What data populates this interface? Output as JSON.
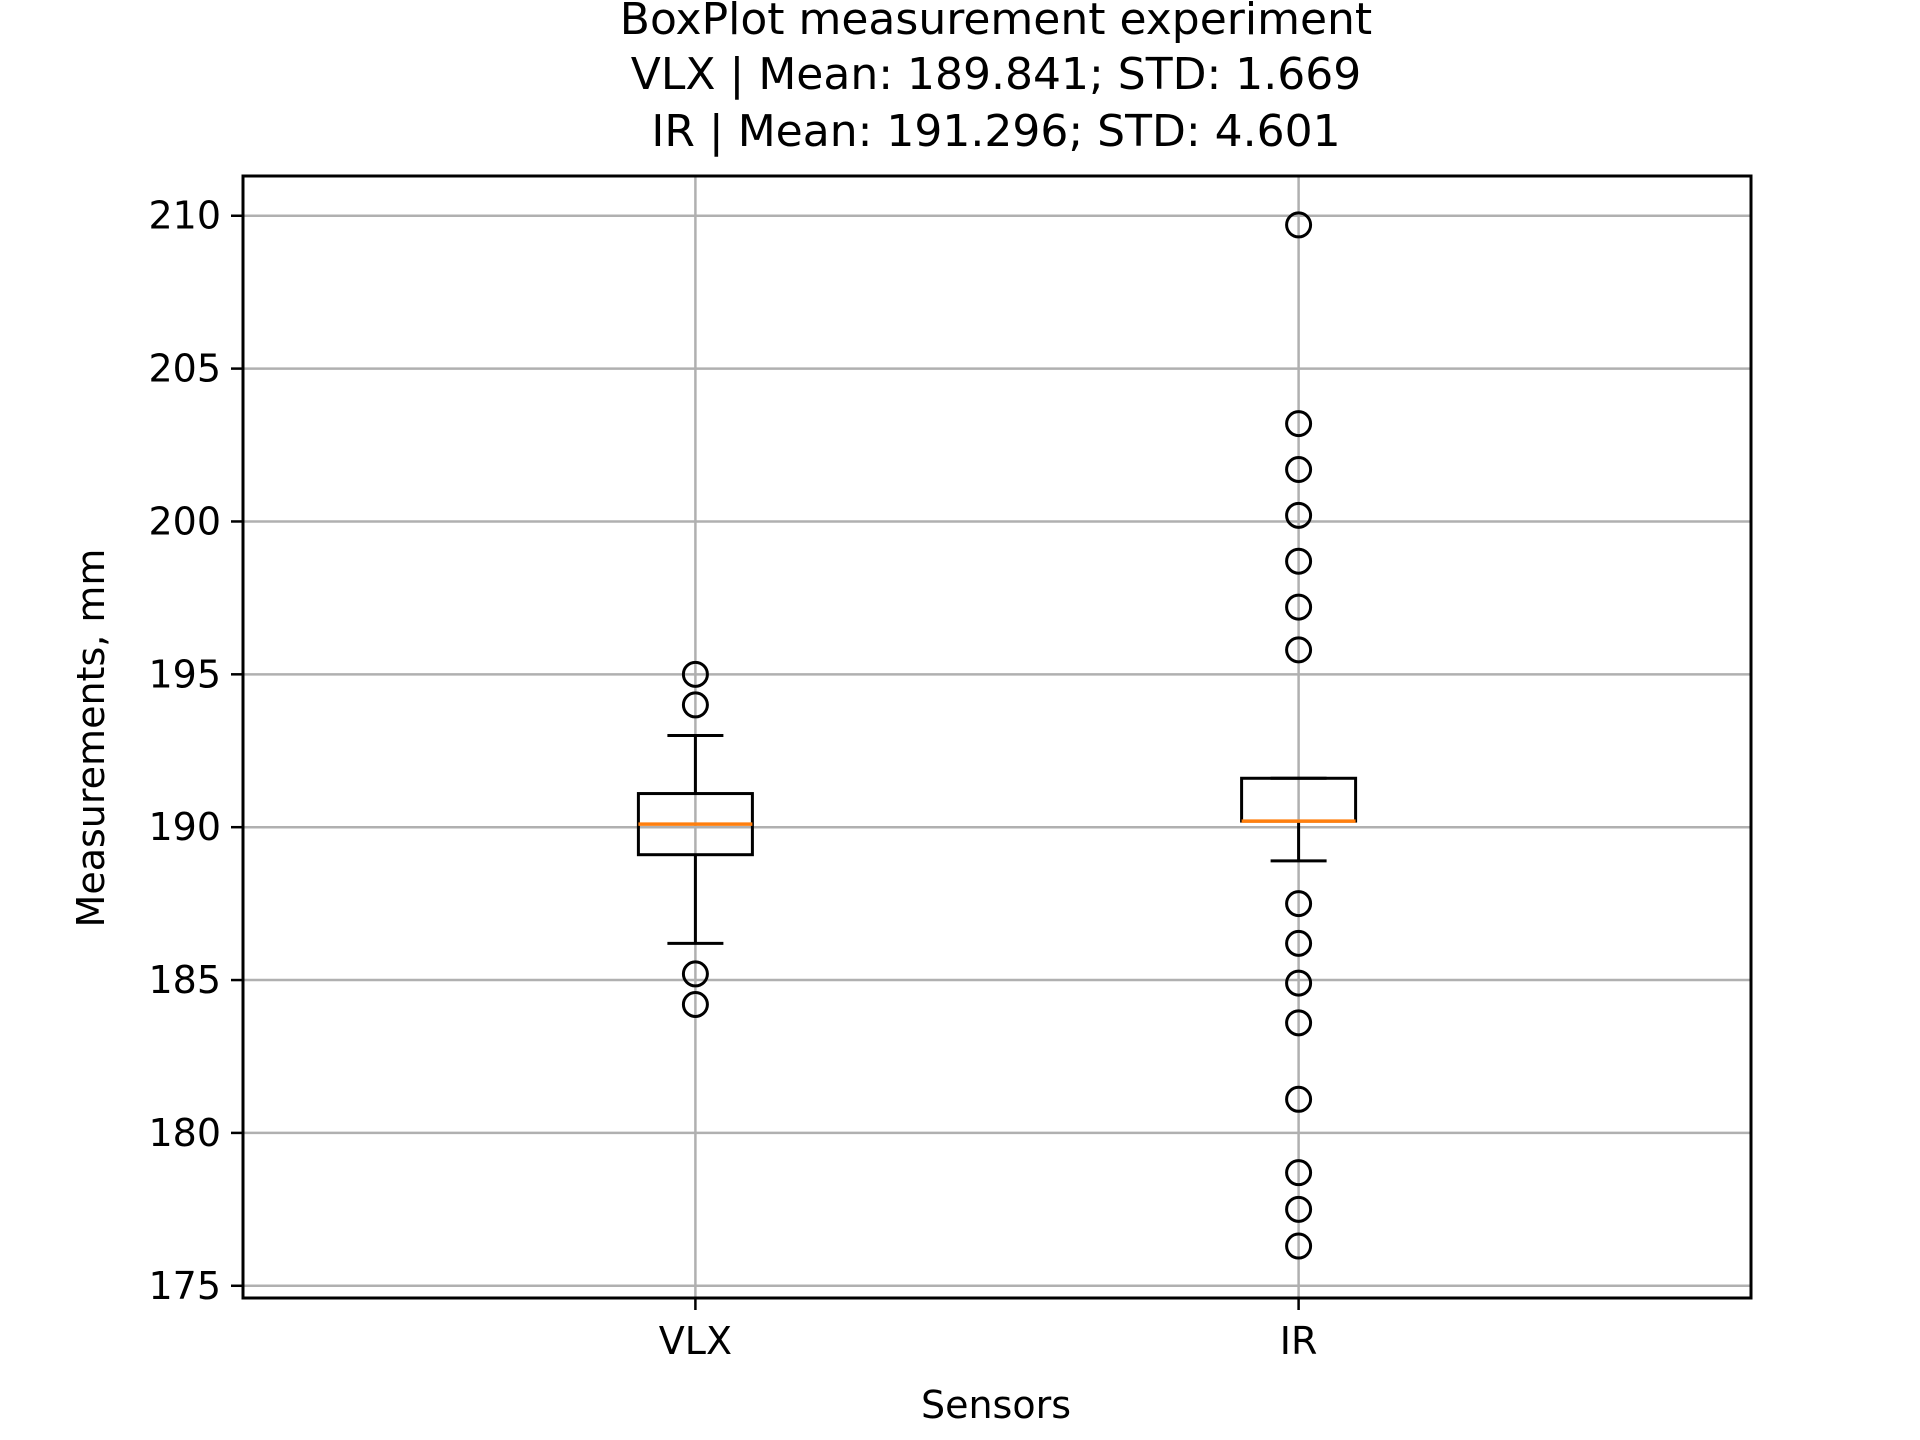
{
  "chart_data": {
    "type": "box",
    "title": [
      "BoxPlot measurement experiment",
      "VLX | Mean: 189.841; STD: 1.669",
      "IR | Mean: 191.296; STD: 4.601"
    ],
    "xlabel": "Sensors",
    "ylabel": "Measurements, mm",
    "categories": [
      "VLX",
      "IR"
    ],
    "ylim": [
      174.6,
      211.3
    ],
    "yticks": [
      175,
      180,
      185,
      190,
      195,
      200,
      205,
      210
    ],
    "grid": true,
    "series": [
      {
        "category": "VLX",
        "whisker_low": 186.2,
        "q1": 189.1,
        "median": 190.1,
        "q3": 191.1,
        "whisker_high": 193.0,
        "outliers": [
          195.0,
          194.0,
          185.2,
          184.2
        ]
      },
      {
        "category": "IR",
        "whisker_low": 188.9,
        "q1": 190.2,
        "median": 190.2,
        "q3": 191.6,
        "whisker_high": 191.6,
        "outliers": [
          209.7,
          203.2,
          201.7,
          200.2,
          198.7,
          197.2,
          195.8,
          187.5,
          186.2,
          184.9,
          183.6,
          181.1,
          178.7,
          177.5,
          176.3
        ]
      }
    ],
    "colors": {
      "box": "#000000",
      "median": "#ff7f0e",
      "grid": "#b0b0b0"
    }
  }
}
